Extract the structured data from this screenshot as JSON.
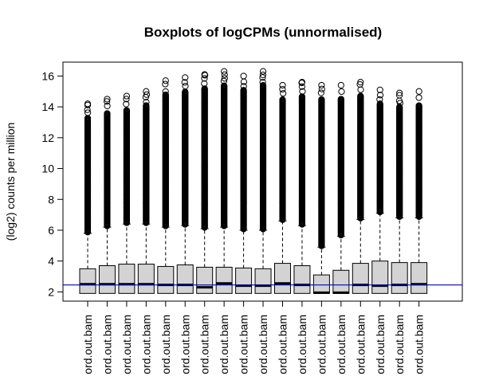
{
  "chart_data": {
    "type": "boxplot",
    "title": "Boxplots of logCPMs (unnormalised)",
    "ylabel": "(log2) counts per million",
    "xlabel": "",
    "ylim": [
      1.4,
      16.9
    ],
    "yticks": [
      2,
      4,
      6,
      8,
      10,
      12,
      14,
      16
    ],
    "reference_line": {
      "y": 2.45,
      "color": "#0000cc"
    },
    "box_fill": "#d3d3d3",
    "categories": [
      "ord.out.bam",
      "ord.out.bam",
      "ord.out.bam",
      "ord.out.bam",
      "ord.out.bam",
      "ord.out.bam",
      "ord.out.bam",
      "ord.out.bam",
      "ord.out.bam",
      "ord.out.bam",
      "ord.out.bam",
      "ord.out.bam",
      "ord.out.bam",
      "ord.out.bam",
      "ord.out.bam",
      "ord.out.bam",
      "ord.out.bam",
      "ord.out.bam"
    ],
    "boxes": [
      {
        "min": 1.9,
        "q1": 1.9,
        "median": 2.5,
        "q3": 3.5,
        "upper_whisker": 5.8,
        "outlier_max": 14.2
      },
      {
        "min": 1.9,
        "q1": 1.9,
        "median": 2.5,
        "q3": 3.7,
        "upper_whisker": 6.2,
        "outlier_max": 14.5
      },
      {
        "min": 1.9,
        "q1": 1.9,
        "median": 2.5,
        "q3": 3.8,
        "upper_whisker": 6.4,
        "outlier_max": 14.7
      },
      {
        "min": 1.9,
        "q1": 1.9,
        "median": 2.5,
        "q3": 3.8,
        "upper_whisker": 6.4,
        "outlier_max": 15.0
      },
      {
        "min": 1.9,
        "q1": 1.9,
        "median": 2.45,
        "q3": 3.65,
        "upper_whisker": 6.2,
        "outlier_max": 15.7
      },
      {
        "min": 1.9,
        "q1": 1.9,
        "median": 2.45,
        "q3": 3.75,
        "upper_whisker": 6.3,
        "outlier_max": 15.9
      },
      {
        "min": 1.9,
        "q1": 1.9,
        "median": 2.3,
        "q3": 3.6,
        "upper_whisker": 6.1,
        "outlier_max": 16.1
      },
      {
        "min": 1.9,
        "q1": 1.9,
        "median": 2.55,
        "q3": 3.6,
        "upper_whisker": 6.2,
        "outlier_max": 16.3
      },
      {
        "min": 1.9,
        "q1": 1.9,
        "median": 2.4,
        "q3": 3.55,
        "upper_whisker": 6.0,
        "outlier_max": 16.0
      },
      {
        "min": 1.9,
        "q1": 1.9,
        "median": 2.4,
        "q3": 3.5,
        "upper_whisker": 6.0,
        "outlier_max": 16.3
      },
      {
        "min": 1.9,
        "q1": 1.9,
        "median": 2.55,
        "q3": 3.85,
        "upper_whisker": 6.6,
        "outlier_max": 15.4
      },
      {
        "min": 1.9,
        "q1": 1.9,
        "median": 2.45,
        "q3": 3.7,
        "upper_whisker": 6.3,
        "outlier_max": 15.6
      },
      {
        "min": 1.9,
        "q1": 1.9,
        "median": 1.95,
        "q3": 3.1,
        "upper_whisker": 4.9,
        "outlier_max": 15.4
      },
      {
        "min": 1.9,
        "q1": 1.9,
        "median": 1.95,
        "q3": 3.4,
        "upper_whisker": 5.6,
        "outlier_max": 15.4
      },
      {
        "min": 1.9,
        "q1": 1.9,
        "median": 2.45,
        "q3": 3.85,
        "upper_whisker": 6.7,
        "outlier_max": 15.6
      },
      {
        "min": 1.9,
        "q1": 1.9,
        "median": 2.4,
        "q3": 4.0,
        "upper_whisker": 7.1,
        "outlier_max": 15.1
      },
      {
        "min": 1.9,
        "q1": 1.9,
        "median": 2.45,
        "q3": 3.9,
        "upper_whisker": 6.8,
        "outlier_max": 14.9
      },
      {
        "min": 1.9,
        "q1": 1.9,
        "median": 2.5,
        "q3": 3.9,
        "upper_whisker": 6.8,
        "outlier_max": 15.0
      }
    ]
  }
}
